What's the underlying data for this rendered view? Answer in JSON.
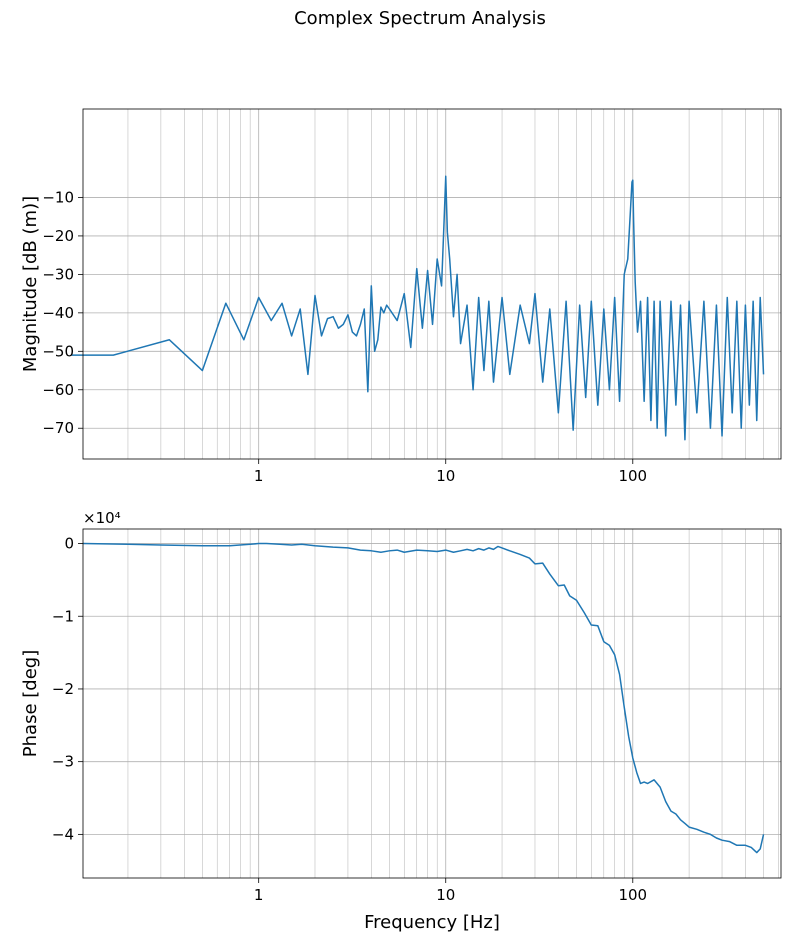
{
  "figure": {
    "suptitle": "Complex Spectrum Analysis"
  },
  "chart_data": [
    {
      "type": "line",
      "title": "",
      "xlabel": "",
      "ylabel": "Magnitude [dB (m)]",
      "xscale": "log",
      "xlim": [
        0.115,
        620
      ],
      "ylim": [
        -78,
        13
      ],
      "grid": true,
      "minor_grid_x": true,
      "x_ticks": [
        {
          "value": 1,
          "label": "1"
        },
        {
          "value": 10,
          "label": "10"
        },
        {
          "value": 100,
          "label": "100"
        }
      ],
      "y_ticks": [
        {
          "value": -10,
          "label": "−10"
        },
        {
          "value": -20,
          "label": "−20"
        },
        {
          "value": -30,
          "label": "−30"
        },
        {
          "value": -40,
          "label": "−40"
        },
        {
          "value": -50,
          "label": "−50"
        },
        {
          "value": -60,
          "label": "−60"
        },
        {
          "value": -70,
          "label": "−70"
        }
      ],
      "series": [
        {
          "color": "#1f77b4",
          "x": [
            0.1,
            0.167,
            0.333,
            0.5,
            0.667,
            0.833,
            1.0,
            1.167,
            1.333,
            1.5,
            1.667,
            1.833,
            2.0,
            2.167,
            2.333,
            2.5,
            2.667,
            2.833,
            3.0,
            3.167,
            3.333,
            3.5,
            3.667,
            3.833,
            4.0,
            4.167,
            4.333,
            4.5,
            4.667,
            4.833,
            5.0,
            5.5,
            6.0,
            6.5,
            7.0,
            7.5,
            8.0,
            8.5,
            9.0,
            9.5,
            9.8,
            10.0,
            10.2,
            10.5,
            11.0,
            11.5,
            12.0,
            13.0,
            14.0,
            15.0,
            16.0,
            17.0,
            18.0,
            20.0,
            22.0,
            25.0,
            28.0,
            30.0,
            33.0,
            36.0,
            40.0,
            44.0,
            48.0,
            52.0,
            56.0,
            60.0,
            65.0,
            70.0,
            75.0,
            80.0,
            85.0,
            90.0,
            94.0,
            97.0,
            99.0,
            100.0,
            101.0,
            103.0,
            106.0,
            110.0,
            115.0,
            120.0,
            125.0,
            130.0,
            135.0,
            140.0,
            150.0,
            160.0,
            170.0,
            180.0,
            190.0,
            200.0,
            220.0,
            240.0,
            260.0,
            280.0,
            300.0,
            320.0,
            340.0,
            360.0,
            380.0,
            400.0,
            420.0,
            440.0,
            460.0,
            480.0,
            500.0
          ],
          "values": [
            -51,
            -51,
            -47,
            -55,
            -37.5,
            -47,
            -36,
            -42,
            -37.5,
            -46,
            -39,
            -56,
            -35.5,
            -46,
            -41.5,
            -41,
            -44,
            -43,
            -40.5,
            -45,
            -46,
            -43,
            -39,
            -60.5,
            -33,
            -50,
            -47,
            -38.5,
            -40,
            -38,
            -39,
            -42,
            -35,
            -49,
            -28.5,
            -44,
            -29,
            -43,
            -26,
            -33,
            -16,
            -4.5,
            -19,
            -26,
            -41,
            -30,
            -48,
            -38,
            -60,
            -36,
            -55,
            -37,
            -58,
            -36,
            -56,
            -38,
            -48,
            -35,
            -58,
            -39,
            -66,
            -37,
            -70.5,
            -38,
            -62,
            -37,
            -64,
            -39,
            -60,
            -36,
            -63,
            -30,
            -26,
            -14,
            -6,
            -5.5,
            -16,
            -32,
            -45,
            -37,
            -63,
            -36,
            -68,
            -37,
            -70,
            -37,
            -72,
            -37,
            -64,
            -38,
            -73,
            -37,
            -66,
            -37,
            -70,
            -38,
            -72,
            -36,
            -66,
            -37,
            -70,
            -38,
            -64,
            -37,
            -68,
            -36,
            -56
          ]
        }
      ]
    },
    {
      "type": "line",
      "title": "",
      "xlabel": "Frequency [Hz]",
      "ylabel": "Phase [deg]",
      "y_offset_label": "×10⁴",
      "xscale": "log",
      "xlim": [
        0.115,
        620
      ],
      "ylim": [
        -4.6,
        0.2
      ],
      "grid": true,
      "minor_grid_x": true,
      "x_ticks": [
        {
          "value": 1,
          "label": "1"
        },
        {
          "value": 10,
          "label": "10"
        },
        {
          "value": 100,
          "label": "100"
        }
      ],
      "y_ticks": [
        {
          "value": 0,
          "label": "0"
        },
        {
          "value": -1,
          "label": "−1"
        },
        {
          "value": -2,
          "label": "−2"
        },
        {
          "value": -3,
          "label": "−3"
        },
        {
          "value": -4,
          "label": "−4"
        }
      ],
      "series": [
        {
          "color": "#1f77b4",
          "x": [
            0.115,
            0.2,
            0.3,
            0.5,
            0.7,
            0.9,
            1.0,
            1.1,
            1.3,
            1.5,
            1.7,
            2.0,
            2.5,
            3.0,
            3.5,
            4.0,
            4.5,
            5.0,
            5.5,
            6.0,
            7.0,
            8.0,
            9.0,
            10.0,
            11.0,
            12.0,
            13.0,
            14.0,
            15.0,
            16.0,
            17.0,
            18.0,
            19.0,
            20.0,
            22.0,
            25.0,
            28.0,
            30.0,
            33.0,
            36.0,
            40.0,
            43.0,
            46.0,
            50.0,
            55.0,
            60.0,
            65.0,
            70.0,
            75.0,
            80.0,
            85.0,
            90.0,
            95.0,
            100.0,
            105.0,
            110.0,
            115.0,
            120.0,
            130.0,
            140.0,
            150.0,
            160.0,
            170.0,
            180.0,
            190.0,
            200.0,
            220.0,
            240.0,
            260.0,
            280.0,
            300.0,
            330.0,
            360.0,
            400.0,
            430.0,
            460.0,
            480.0,
            500.0
          ],
          "values": [
            0.0,
            -0.01,
            -0.02,
            -0.03,
            -0.03,
            -0.01,
            0.0,
            0.0,
            -0.01,
            -0.02,
            -0.01,
            -0.03,
            -0.05,
            -0.06,
            -0.09,
            -0.1,
            -0.12,
            -0.1,
            -0.09,
            -0.12,
            -0.09,
            -0.1,
            -0.11,
            -0.09,
            -0.12,
            -0.1,
            -0.08,
            -0.1,
            -0.07,
            -0.09,
            -0.06,
            -0.08,
            -0.04,
            -0.06,
            -0.1,
            -0.15,
            -0.2,
            -0.28,
            -0.27,
            -0.42,
            -0.58,
            -0.57,
            -0.72,
            -0.78,
            -0.95,
            -1.12,
            -1.13,
            -1.35,
            -1.4,
            -1.53,
            -1.8,
            -2.25,
            -2.65,
            -2.95,
            -3.15,
            -3.3,
            -3.28,
            -3.3,
            -3.25,
            -3.35,
            -3.55,
            -3.68,
            -3.72,
            -3.8,
            -3.85,
            -3.9,
            -3.93,
            -3.97,
            -4.0,
            -4.05,
            -4.08,
            -4.1,
            -4.15,
            -4.15,
            -4.18,
            -4.25,
            -4.2,
            -4.0
          ]
        }
      ]
    }
  ]
}
